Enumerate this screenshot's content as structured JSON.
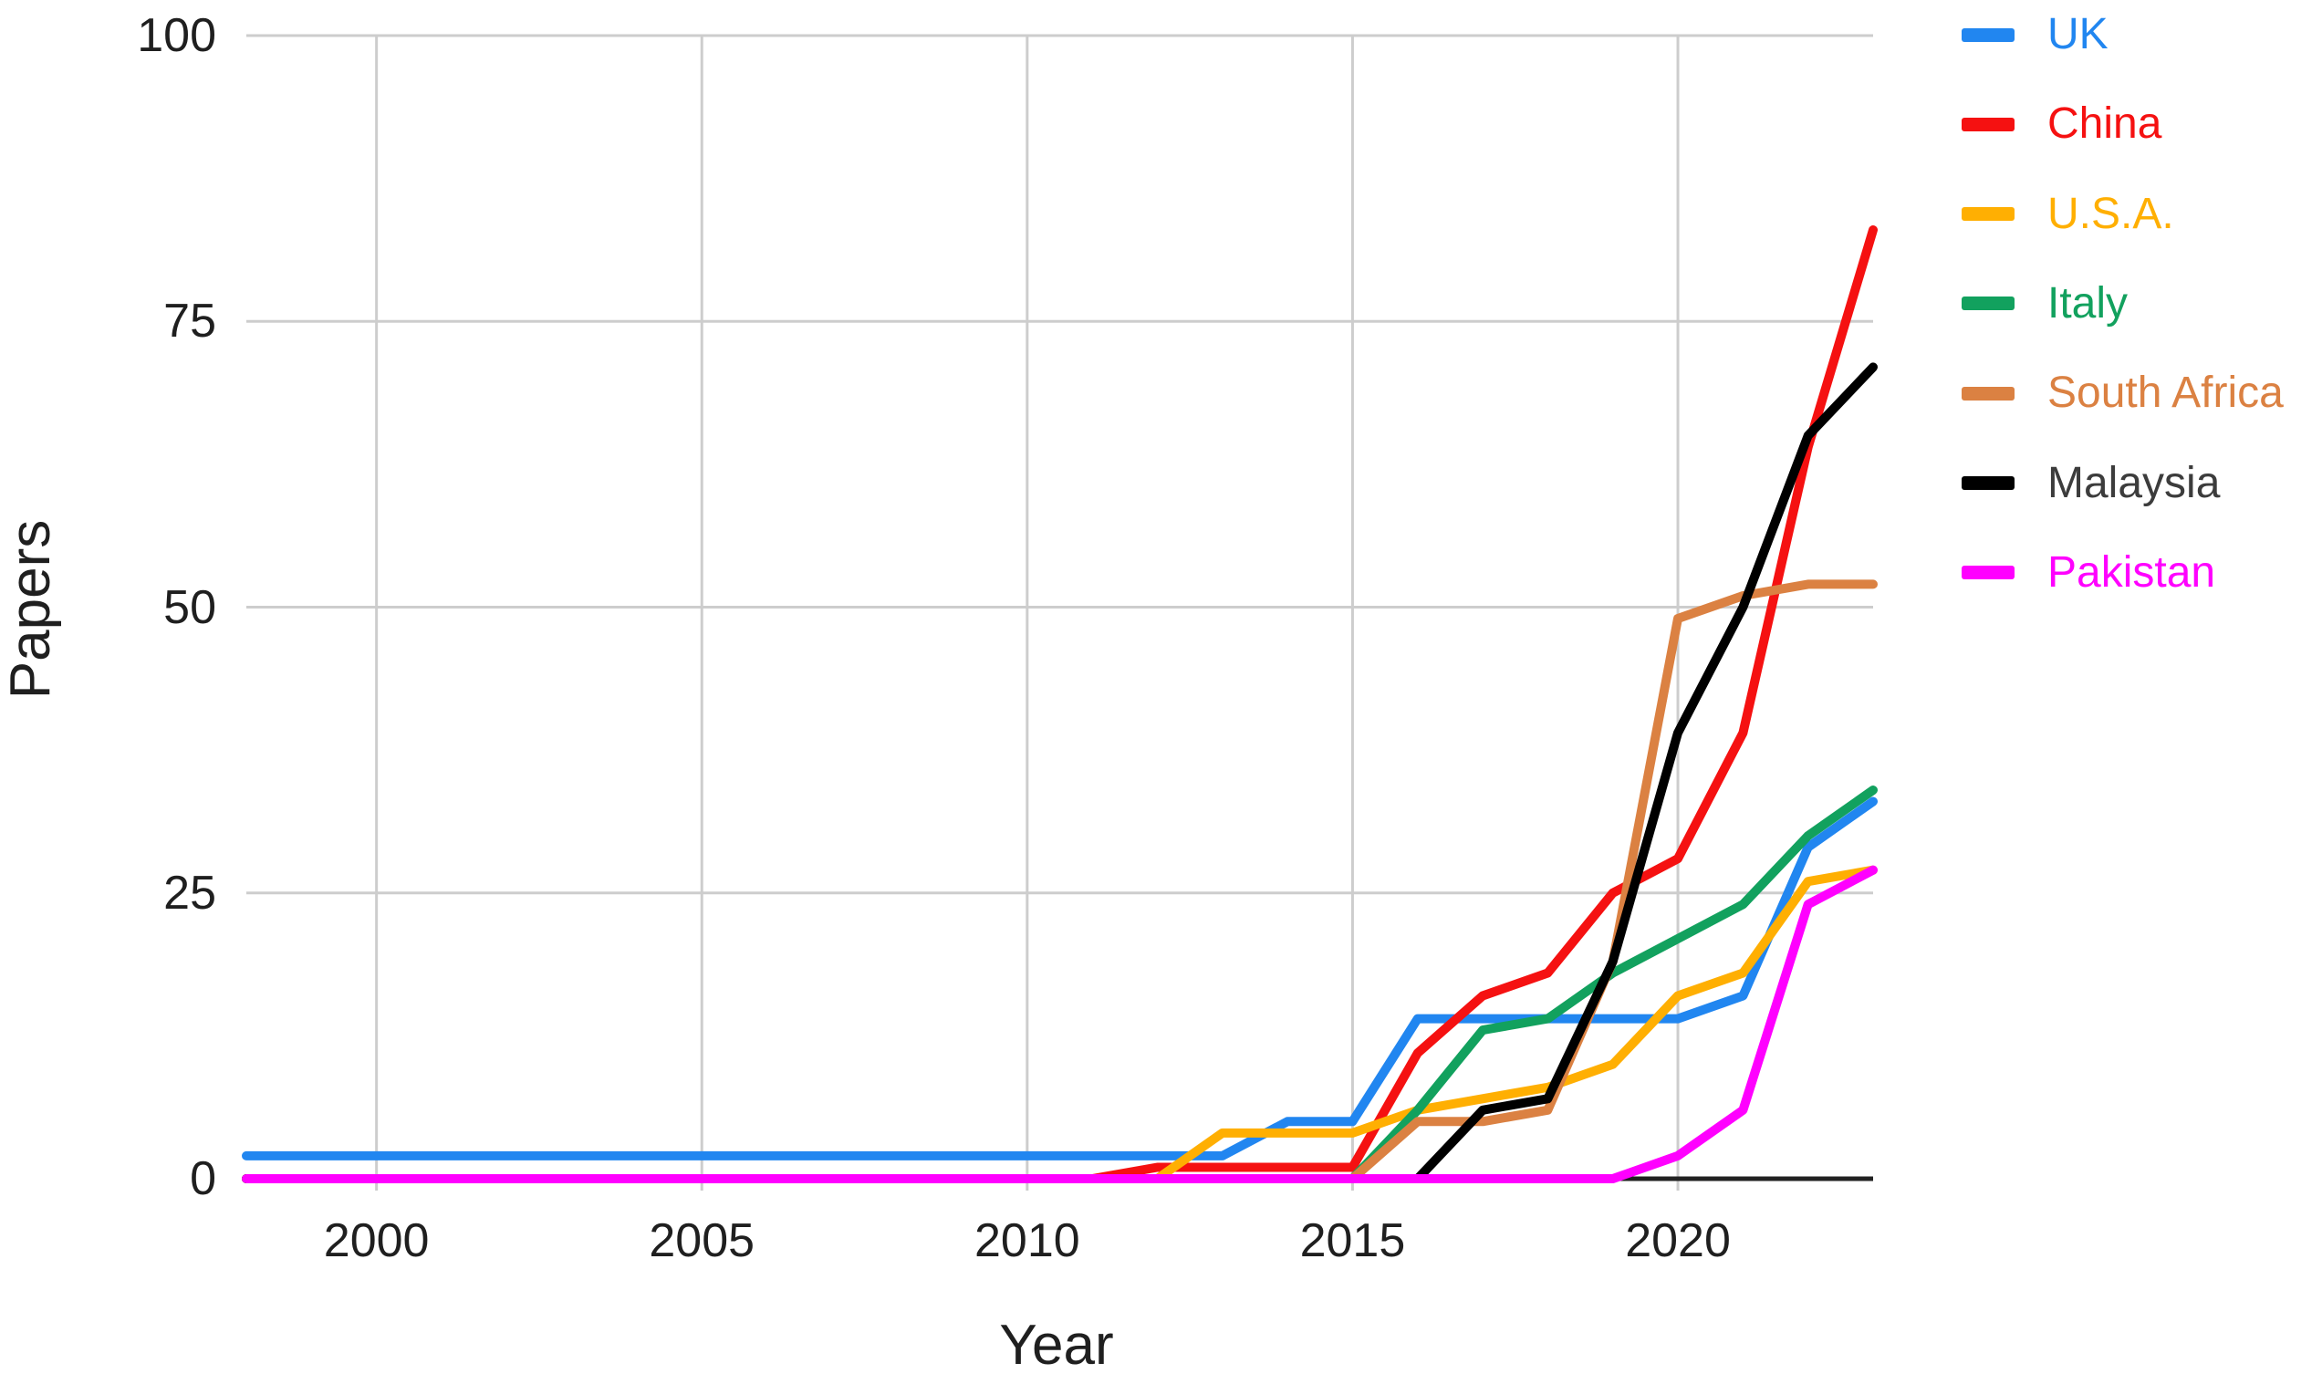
{
  "chart_data": {
    "type": "line",
    "title": "",
    "xlabel": "Year",
    "ylabel": "Papers",
    "xlim": [
      1998,
      2023
    ],
    "ylim": [
      0,
      100
    ],
    "xticks": [
      2000,
      2005,
      2010,
      2015,
      2020
    ],
    "yticks": [
      0,
      25,
      50,
      75,
      100
    ],
    "grid": true,
    "legend_position": "right",
    "years": [
      1998,
      1999,
      2000,
      2001,
      2002,
      2003,
      2004,
      2005,
      2006,
      2007,
      2008,
      2009,
      2010,
      2011,
      2012,
      2013,
      2014,
      2015,
      2016,
      2017,
      2018,
      2019,
      2020,
      2021,
      2022,
      2023
    ],
    "series": [
      {
        "name": "UK",
        "color": "#2186F0",
        "values": [
          2,
          2,
          2,
          2,
          2,
          2,
          2,
          2,
          2,
          2,
          2,
          2,
          2,
          2,
          2,
          2,
          5,
          5,
          14,
          14,
          14,
          14,
          14,
          16,
          29,
          33
        ]
      },
      {
        "name": "China",
        "color": "#F51111",
        "values": [
          0,
          0,
          0,
          0,
          0,
          0,
          0,
          0,
          0,
          0,
          0,
          0,
          0,
          0,
          1,
          1,
          1,
          1,
          11,
          16,
          18,
          25,
          28,
          39,
          64,
          83
        ]
      },
      {
        "name": "U.S.A.",
        "color": "#FFAF02",
        "values": [
          0,
          0,
          0,
          0,
          0,
          0,
          0,
          0,
          0,
          0,
          0,
          0,
          0,
          0,
          0,
          4,
          4,
          4,
          6,
          7,
          8,
          10,
          16,
          18,
          26,
          27
        ]
      },
      {
        "name": "Italy",
        "color": "#12A15E",
        "values": [
          0,
          0,
          0,
          0,
          0,
          0,
          0,
          0,
          0,
          0,
          0,
          0,
          0,
          0,
          0,
          0,
          0,
          0,
          6,
          13,
          14,
          18,
          21,
          24,
          30,
          34
        ]
      },
      {
        "name": "South Africa",
        "color": "#DB8142",
        "values": [
          0,
          0,
          0,
          0,
          0,
          0,
          0,
          0,
          0,
          0,
          0,
          0,
          0,
          0,
          0,
          0,
          0,
          0,
          5,
          5,
          6,
          19,
          49,
          51,
          52,
          52
        ]
      },
      {
        "name": "Malaysia",
        "color": "#000000",
        "text_color": "#3C3C3C",
        "values": [
          0,
          0,
          0,
          0,
          0,
          0,
          0,
          0,
          0,
          0,
          0,
          0,
          0,
          0,
          0,
          0,
          0,
          0,
          0,
          6,
          7,
          19,
          39,
          50,
          65,
          71
        ]
      },
      {
        "name": "Pakistan",
        "color": "#FF00FF",
        "values": [
          0,
          0,
          0,
          0,
          0,
          0,
          0,
          0,
          0,
          0,
          0,
          0,
          0,
          0,
          0,
          0,
          0,
          0,
          0,
          0,
          0,
          0,
          2,
          6,
          24,
          27
        ]
      }
    ],
    "grid_color": "#CDCDCD",
    "axis_line_color": "#212121",
    "tick_label_color": "#1F1F1F"
  }
}
